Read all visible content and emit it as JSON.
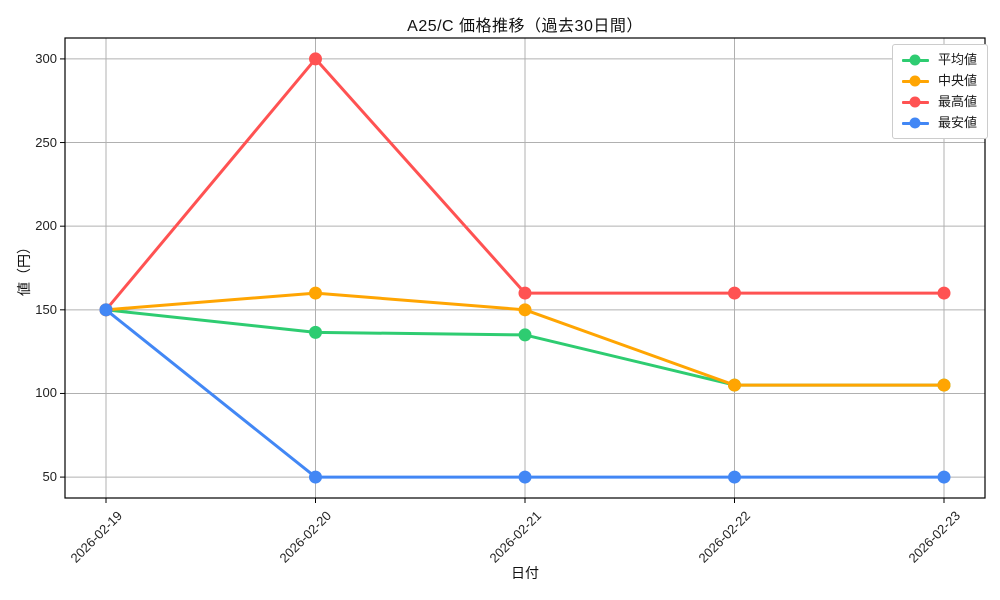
{
  "figure": {
    "background": "#ffffff",
    "axis_color": "#000000"
  },
  "chart_data": {
    "type": "line",
    "title": "A25/C 価格推移（過去30日間）",
    "xlabel": "日付",
    "ylabel": "値（円）",
    "categories": [
      "2026-02-19",
      "2026-02-20",
      "2026-02-21",
      "2026-02-22",
      "2026-02-23"
    ],
    "series": [
      {
        "name": "平均値",
        "color": "#2ecc71",
        "values": [
          150,
          136.5,
          135,
          105,
          105
        ]
      },
      {
        "name": "中央値",
        "color": "#ffa502",
        "values": [
          150,
          160,
          150,
          105,
          105
        ]
      },
      {
        "name": "最高値",
        "color": "#ff5252",
        "values": [
          150,
          300,
          160,
          160,
          160
        ]
      },
      {
        "name": "最安値",
        "color": "#4287f5",
        "values": [
          150,
          50,
          50,
          50,
          50
        ]
      }
    ],
    "yticks": [
      50,
      100,
      150,
      200,
      250,
      300
    ],
    "ylim": [
      37.5,
      312.5
    ],
    "grid": true,
    "grid_color": "#b0b0b0",
    "legend_position": "upper right",
    "marker": "circle"
  }
}
